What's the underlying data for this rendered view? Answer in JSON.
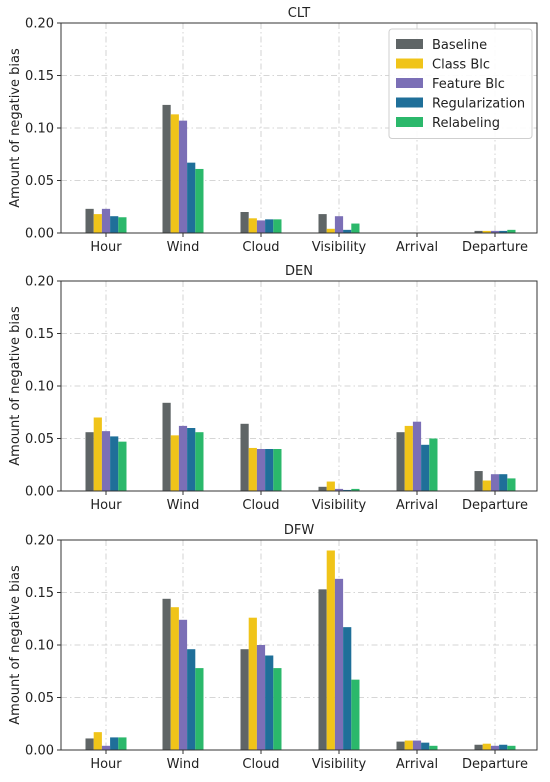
{
  "chart_data": [
    {
      "type": "bar",
      "title": "CLT",
      "ylabel": "Amount of negative bias",
      "xlabel": "",
      "ylim": [
        0,
        0.2
      ],
      "yticks": [
        "0.00",
        "0.05",
        "0.10",
        "0.15",
        "0.20"
      ],
      "categories": [
        "Hour",
        "Wind",
        "Cloud",
        "Visibility",
        "Arrival",
        "Departure"
      ],
      "series": [
        {
          "name": "Baseline",
          "color": "#5f6566",
          "values": [
            0.023,
            0.122,
            0.02,
            0.018,
            0.0,
            0.002
          ]
        },
        {
          "name": "Class Blc",
          "color": "#f0c419",
          "values": [
            0.018,
            0.113,
            0.014,
            0.004,
            0.0,
            0.002
          ]
        },
        {
          "name": "Feature Blc",
          "color": "#7b6fb6",
          "values": [
            0.023,
            0.107,
            0.012,
            0.016,
            0.0,
            0.002
          ]
        },
        {
          "name": "Regularization",
          "color": "#1f6f99",
          "values": [
            0.016,
            0.067,
            0.013,
            0.003,
            0.0,
            0.002
          ]
        },
        {
          "name": "Relabeling",
          "color": "#2bb86b",
          "values": [
            0.015,
            0.061,
            0.013,
            0.009,
            0.0,
            0.003
          ]
        }
      ],
      "grid": true,
      "legend_position": "top-right"
    },
    {
      "type": "bar",
      "title": "DEN",
      "ylabel": "Amount of negative bias",
      "xlabel": "",
      "ylim": [
        0,
        0.2
      ],
      "yticks": [
        "0.00",
        "0.05",
        "0.10",
        "0.15",
        "0.20"
      ],
      "categories": [
        "Hour",
        "Wind",
        "Cloud",
        "Visibility",
        "Arrival",
        "Departure"
      ],
      "series": [
        {
          "name": "Baseline",
          "color": "#5f6566",
          "values": [
            0.056,
            0.084,
            0.064,
            0.004,
            0.056,
            0.019
          ]
        },
        {
          "name": "Class Blc",
          "color": "#f0c419",
          "values": [
            0.07,
            0.053,
            0.041,
            0.009,
            0.062,
            0.01
          ]
        },
        {
          "name": "Feature Blc",
          "color": "#7b6fb6",
          "values": [
            0.057,
            0.062,
            0.04,
            0.002,
            0.066,
            0.016
          ]
        },
        {
          "name": "Regularization",
          "color": "#1f6f99",
          "values": [
            0.052,
            0.06,
            0.04,
            0.001,
            0.044,
            0.016
          ]
        },
        {
          "name": "Relabeling",
          "color": "#2bb86b",
          "values": [
            0.047,
            0.056,
            0.04,
            0.002,
            0.05,
            0.012
          ]
        }
      ],
      "grid": true
    },
    {
      "type": "bar",
      "title": "DFW",
      "ylabel": "Amount of negative bias",
      "xlabel": "",
      "ylim": [
        0,
        0.2
      ],
      "yticks": [
        "0.00",
        "0.05",
        "0.10",
        "0.15",
        "0.20"
      ],
      "categories": [
        "Hour",
        "Wind",
        "Cloud",
        "Visibility",
        "Arrival",
        "Departure"
      ],
      "series": [
        {
          "name": "Baseline",
          "color": "#5f6566",
          "values": [
            0.011,
            0.144,
            0.096,
            0.153,
            0.008,
            0.005
          ]
        },
        {
          "name": "Class Blc",
          "color": "#f0c419",
          "values": [
            0.017,
            0.136,
            0.126,
            0.19,
            0.009,
            0.006
          ]
        },
        {
          "name": "Feature Blc",
          "color": "#7b6fb6",
          "values": [
            0.004,
            0.124,
            0.1,
            0.163,
            0.009,
            0.004
          ]
        },
        {
          "name": "Regularization",
          "color": "#1f6f99",
          "values": [
            0.012,
            0.096,
            0.09,
            0.117,
            0.007,
            0.005
          ]
        },
        {
          "name": "Relabeling",
          "color": "#2bb86b",
          "values": [
            0.012,
            0.078,
            0.078,
            0.067,
            0.004,
            0.004
          ]
        }
      ],
      "grid": true
    }
  ]
}
